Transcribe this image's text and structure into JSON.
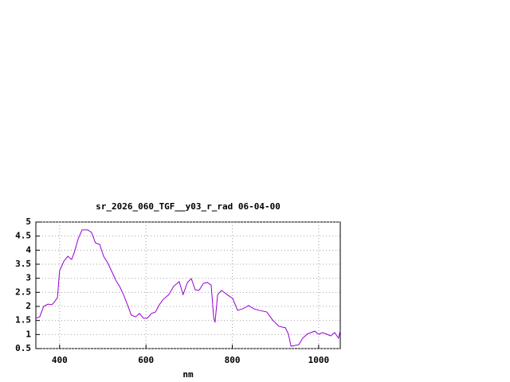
{
  "chart_data": {
    "type": "line",
    "title": "sr_2026_060_TGF__y03_r_rad 06-04-00",
    "xlabel": "nm",
    "x": [
      345,
      354,
      363,
      373,
      382,
      387,
      395,
      400,
      410,
      419,
      428,
      434,
      443,
      452,
      465,
      474,
      483,
      493,
      502,
      511,
      520,
      530,
      539,
      548,
      557,
      566,
      576,
      585,
      594,
      603,
      613,
      622,
      631,
      640,
      653,
      664,
      677,
      686,
      696,
      705,
      714,
      723,
      733,
      742,
      751,
      757,
      760,
      766,
      775,
      788,
      801,
      812,
      825,
      838,
      849,
      862,
      880,
      893,
      908,
      923,
      930,
      936,
      954,
      963,
      973,
      982,
      991,
      1000,
      1009,
      1019,
      1028,
      1037,
      1046,
      1050
    ],
    "series": [
      {
        "color": "#9400d3",
        "values": [
          1.58,
          1.63,
          2.0,
          2.08,
          2.06,
          2.14,
          2.31,
          3.27,
          3.61,
          3.78,
          3.67,
          3.92,
          4.4,
          4.72,
          4.72,
          4.63,
          4.26,
          4.2,
          3.78,
          3.56,
          3.27,
          2.93,
          2.71,
          2.42,
          2.06,
          1.69,
          1.63,
          1.75,
          1.58,
          1.58,
          1.75,
          1.8,
          2.06,
          2.25,
          2.42,
          2.71,
          2.88,
          2.42,
          2.85,
          2.99,
          2.59,
          2.57,
          2.82,
          2.85,
          2.76,
          1.58,
          1.43,
          2.42,
          2.57,
          2.42,
          2.28,
          1.86,
          1.92,
          2.03,
          1.92,
          1.86,
          1.8,
          1.52,
          1.29,
          1.24,
          1.01,
          0.58,
          0.64,
          0.87,
          1.01,
          1.07,
          1.12,
          1.01,
          1.07,
          1.01,
          0.95,
          1.07,
          0.87,
          1.15
        ]
      }
    ],
    "xlim": [
      345,
      1050
    ],
    "ylim": [
      0.5,
      5
    ],
    "xticks": [
      400,
      600,
      800,
      1000
    ],
    "yticks": [
      0.5,
      1,
      1.5,
      2,
      2.5,
      3,
      3.5,
      4,
      4.5,
      5
    ],
    "grid": true
  }
}
